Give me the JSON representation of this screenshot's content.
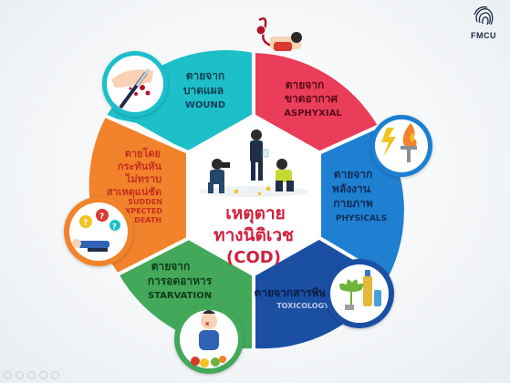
{
  "colors": {
    "wound": "#1dbfc9",
    "asphyxial": "#ea3d5a",
    "physicals": "#1f7fd1",
    "toxicology": "#1a4fa3",
    "starvation": "#43a85a",
    "sudden": "#f2832c",
    "center_text": "#d11f3c"
  },
  "center": {
    "title_line1": "เหตุตาย",
    "title_line2": "ทางนิติเวช",
    "title_line3": "(COD)"
  },
  "segments": {
    "wound": {
      "th_1": "ตายจาก",
      "th_2": "บาดแผล",
      "en": "WOUND",
      "icon": "knife-wound-icon"
    },
    "asphyxial": {
      "th_1": "ตายจาก",
      "th_2": "ขาดอากาศ",
      "en": "ASPHYXIAL",
      "icon": "strangulation-icon"
    },
    "physicals": {
      "th_1": "ตายจาก",
      "th_2": "พลังงาน",
      "th_3": "กายภาพ",
      "en": "PHYSICALS",
      "icon": "fire-lightning-icon"
    },
    "toxicology": {
      "th_1": "ตายจากสารพิษ",
      "en": "TOXICOLOGY",
      "icon": "poison-bottles-icon"
    },
    "starvation": {
      "th_1": "ตายจาก",
      "th_2": "การอดอาหาร",
      "en": "STARVATION",
      "icon": "starving-person-icon"
    },
    "sudden": {
      "th_1": "ตายโดย",
      "th_2": "กระทันหัน",
      "th_3": "ไม่ทราบ",
      "th_4": "สาเหตุแน่ชัด",
      "en_1": "SUDDEN",
      "en_2": "UNEXPECTED",
      "en_3": "DEATH",
      "icon": "collapsed-person-icon"
    }
  },
  "logo": {
    "text": "FMCU"
  }
}
